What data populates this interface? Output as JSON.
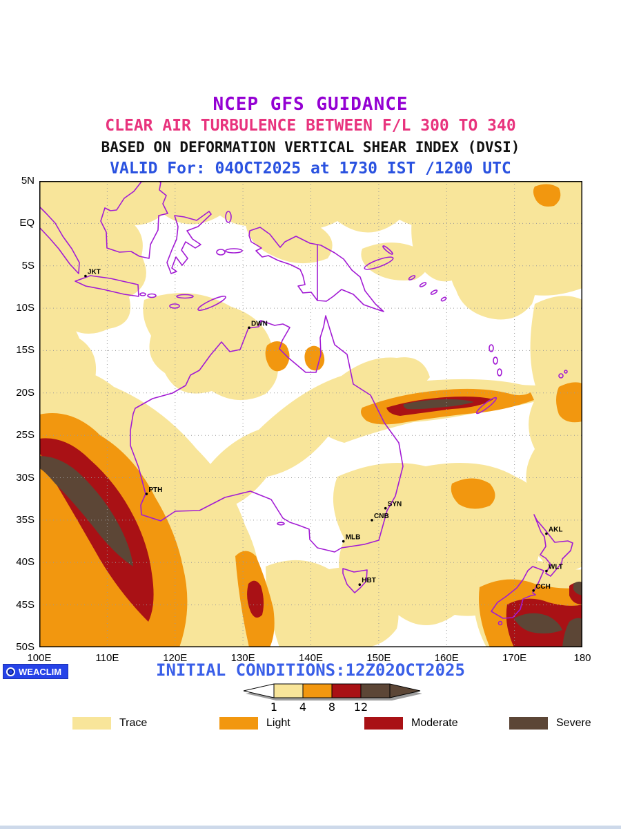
{
  "header": {
    "title1": "NCEP GFS GUIDANCE",
    "title2": "CLEAR AIR TURBULENCE BETWEEN F/L 300 TO 340",
    "title3": "BASED ON DEFORMATION VERTICAL SHEAR INDEX (DVSI)",
    "title4": "VALID For: 04OCT2025 at 1730 IST /1200 UTC",
    "colors": {
      "title1": "#9400D3",
      "title2": "#E8337D",
      "title3": "#111111",
      "title4": "#2A52E0"
    }
  },
  "map": {
    "extent": {
      "lon_min": 100,
      "lon_max": 180,
      "lat_max": 5,
      "lat_min": -50
    },
    "grid": {
      "lat_step_deg": 5,
      "lon_step_deg": 10
    },
    "y_ticks": [
      "5N",
      "EQ",
      "5S",
      "10S",
      "15S",
      "20S",
      "25S",
      "30S",
      "35S",
      "40S",
      "45S",
      "50S"
    ],
    "x_ticks": [
      "100E",
      "110E",
      "120E",
      "130E",
      "140E",
      "150E",
      "160E",
      "170E",
      "180"
    ],
    "coast_color": "#A21BD4",
    "cities": [
      {
        "code": "JKT",
        "lon": 106.8,
        "lat": -6.2
      },
      {
        "code": "DWN",
        "lon": 130.9,
        "lat": -12.3
      },
      {
        "code": "PTH",
        "lon": 115.8,
        "lat": -31.9
      },
      {
        "code": "SYN",
        "lon": 151.0,
        "lat": -33.6
      },
      {
        "code": "CNB",
        "lon": 149.0,
        "lat": -35.0
      },
      {
        "code": "MLB",
        "lon": 144.8,
        "lat": -37.5
      },
      {
        "code": "HBT",
        "lon": 147.2,
        "lat": -42.6
      },
      {
        "code": "AKL",
        "lon": 174.7,
        "lat": -36.6
      },
      {
        "code": "WLT",
        "lon": 174.7,
        "lat": -41.0
      },
      {
        "code": "CCH",
        "lon": 172.8,
        "lat": -43.3
      }
    ]
  },
  "colorbar": {
    "tick_labels": [
      "1",
      "4",
      "8",
      "12"
    ],
    "segment_colors": [
      "#FFFFFF",
      "#F8E59A",
      "#F2970F",
      "#A91115",
      "#5C4636"
    ]
  },
  "legend": {
    "items": [
      {
        "label": "Trace",
        "color": "#F8E59A"
      },
      {
        "label": "Light",
        "color": "#F2970F"
      },
      {
        "label": "Moderate",
        "color": "#A91115"
      },
      {
        "label": "Severe",
        "color": "#5C4636"
      }
    ]
  },
  "footer": {
    "initial_conditions": "INITIAL CONDITIONS:12Z02OCT2025",
    "logo_label": "WEACLIM"
  }
}
